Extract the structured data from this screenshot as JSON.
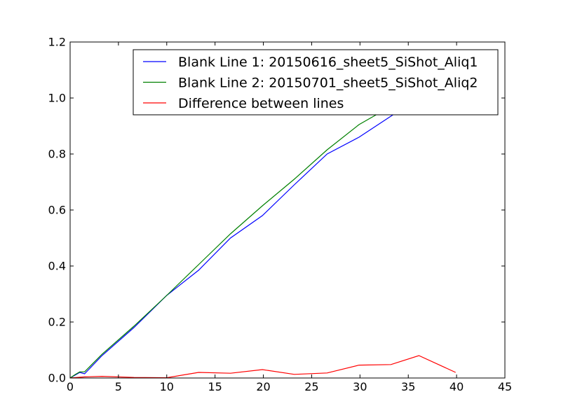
{
  "chart_data": {
    "type": "line",
    "title": "",
    "xlabel": "",
    "ylabel": "",
    "xlim": [
      0,
      45
    ],
    "ylim": [
      0,
      1.2
    ],
    "xticks": [
      0,
      5,
      10,
      15,
      20,
      25,
      30,
      35,
      40,
      45
    ],
    "yticks": [
      0.0,
      0.2,
      0.4,
      0.6,
      0.8,
      1.0,
      1.2
    ],
    "xtick_labels": [
      "0",
      "5",
      "10",
      "15",
      "20",
      "25",
      "30",
      "35",
      "40",
      "45"
    ],
    "ytick_labels": [
      "0.0",
      "0.2",
      "0.4",
      "0.6",
      "0.8",
      "1.0",
      "1.2"
    ],
    "grid": false,
    "legend_position": "top-right",
    "series": [
      {
        "name": "Blank Line 1: 20150616_sheet5_SiShot_Aliq1",
        "color": "#0000ff",
        "x": [
          0,
          0.5,
          1.0,
          1.5,
          3.3,
          6.6,
          10.0,
          13.3,
          16.6,
          19.9,
          23.2,
          26.6,
          29.9,
          33.2,
          36.5,
          39.9
        ],
        "y": [
          0.0,
          0.01,
          0.02,
          0.015,
          0.08,
          0.18,
          0.295,
          0.385,
          0.5,
          0.58,
          0.69,
          0.8,
          0.86,
          0.935,
          1.01,
          1.09
        ]
      },
      {
        "name": "Blank Line 2: 20150701_sheet5_SiShot_Aliq2",
        "color": "#008000",
        "x": [
          0,
          0.5,
          1.0,
          1.5,
          3.3,
          6.6,
          10.0,
          13.3,
          16.6,
          19.9,
          23.2,
          26.6,
          29.9,
          33.2,
          36.5,
          39.9
        ],
        "y": [
          0.0,
          0.012,
          0.022,
          0.022,
          0.085,
          0.185,
          0.295,
          0.405,
          0.515,
          0.615,
          0.71,
          0.815,
          0.905,
          0.97,
          1.04,
          1.1
        ]
      },
      {
        "name": "Difference between lines",
        "color": "#ff0000",
        "x": [
          0,
          1.5,
          3.3,
          6.6,
          10.0,
          13.3,
          16.6,
          19.9,
          23.2,
          26.6,
          29.9,
          33.2,
          36.1,
          39.9
        ],
        "y": [
          0.0,
          0.004,
          0.006,
          0.002,
          0.001,
          0.02,
          0.017,
          0.03,
          0.013,
          0.018,
          0.046,
          0.048,
          0.08,
          0.02
        ]
      }
    ]
  }
}
